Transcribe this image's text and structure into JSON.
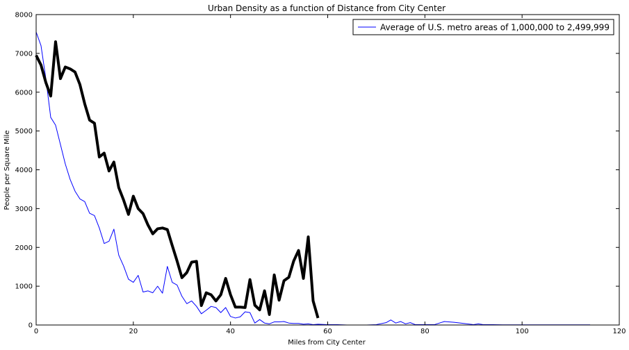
{
  "chart_data": {
    "type": "line",
    "title": "Urban Density as a function of Distance from City Center",
    "xlabel": "Miles from City Center",
    "ylabel": "People per Square Mile",
    "xlim": [
      0,
      120
    ],
    "ylim": [
      0,
      8000
    ],
    "xticks": [
      0,
      20,
      40,
      60,
      80,
      100,
      120
    ],
    "yticks": [
      0,
      1000,
      2000,
      3000,
      4000,
      5000,
      6000,
      7000,
      8000
    ],
    "grid": false,
    "legend_position": "top-right",
    "series": [
      {
        "name": "Average of U.S. metro areas of 1,000,000 to 2,499,999",
        "color": "#0000ff",
        "style": "thin",
        "in_legend": true,
        "x": [
          0,
          1,
          2,
          3,
          4,
          5,
          6,
          7,
          8,
          9,
          10,
          11,
          12,
          13,
          14,
          15,
          16,
          17,
          18,
          19,
          20,
          21,
          22,
          23,
          24,
          25,
          26,
          27,
          28,
          29,
          30,
          31,
          32,
          33,
          34,
          35,
          36,
          37,
          38,
          39,
          40,
          41,
          42,
          43,
          44,
          45,
          46,
          47,
          48,
          49,
          50,
          51,
          52,
          53,
          54,
          55,
          56,
          57,
          58,
          60,
          62,
          64,
          66,
          68,
          70,
          72,
          73,
          74,
          75,
          76,
          77,
          78,
          80,
          82,
          84,
          86,
          88,
          90,
          91,
          92,
          94,
          96,
          98,
          100,
          102,
          104,
          106,
          108,
          110,
          112,
          114
        ],
        "y": [
          7550,
          7200,
          6350,
          5350,
          5150,
          4650,
          4150,
          3750,
          3450,
          3250,
          3180,
          2880,
          2820,
          2500,
          2100,
          2160,
          2470,
          1800,
          1520,
          1180,
          1100,
          1280,
          850,
          880,
          830,
          1000,
          820,
          1510,
          1100,
          1030,
          740,
          550,
          620,
          480,
          290,
          380,
          480,
          450,
          320,
          450,
          220,
          180,
          210,
          340,
          320,
          50,
          140,
          50,
          30,
          80,
          80,
          90,
          50,
          40,
          40,
          20,
          30,
          10,
          20,
          10,
          10,
          0,
          0,
          0,
          10,
          60,
          130,
          50,
          90,
          30,
          60,
          10,
          10,
          10,
          90,
          70,
          40,
          10,
          30,
          10,
          10,
          5,
          5,
          5,
          5,
          5,
          5,
          5,
          5,
          5,
          5
        ]
      },
      {
        "name": "",
        "color": "#000000",
        "style": "thick",
        "in_legend": false,
        "x": [
          0,
          1,
          2,
          3,
          4,
          5,
          6,
          7,
          8,
          9,
          10,
          11,
          12,
          13,
          14,
          15,
          16,
          17,
          18,
          19,
          20,
          21,
          22,
          23,
          24,
          25,
          26,
          27,
          28,
          29,
          30,
          31,
          32,
          33,
          34,
          35,
          36,
          37,
          38,
          39,
          40,
          41,
          42,
          43,
          44,
          45,
          46,
          47,
          48,
          49,
          50,
          51,
          52,
          53,
          54,
          55,
          56,
          57,
          58
        ],
        "y": [
          6950,
          6700,
          6250,
          5900,
          7300,
          6350,
          6650,
          6600,
          6520,
          6200,
          5700,
          5280,
          5200,
          4330,
          4430,
          3970,
          4200,
          3540,
          3220,
          2850,
          3320,
          3000,
          2870,
          2580,
          2350,
          2480,
          2500,
          2460,
          2050,
          1650,
          1220,
          1350,
          1620,
          1640,
          500,
          830,
          780,
          620,
          780,
          1200,
          780,
          460,
          460,
          450,
          1170,
          510,
          390,
          880,
          270,
          1290,
          640,
          1140,
          1230,
          1650,
          1920,
          1200,
          2270,
          620,
          180
        ]
      }
    ]
  }
}
